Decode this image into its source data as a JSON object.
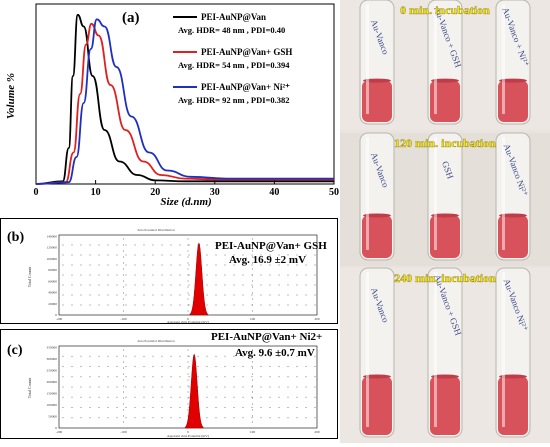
{
  "panel_a": {
    "panel_label": "(a)",
    "chart_data": {
      "type": "line",
      "xlabel": "Size (d.nm)",
      "ylabel": "Volume %",
      "xlim": [
        0,
        50
      ],
      "x_ticks": [
        0,
        10,
        20,
        30,
        40,
        50
      ],
      "legend_placement": "top-right",
      "series": [
        {
          "name": "PEI-AuNP@Van",
          "detail": "Avg. HDR= 48 nm , PDI=0.40",
          "color": "#000000",
          "x": [
            0,
            4.5,
            5.5,
            6.2,
            7.0,
            8.0,
            9.5,
            11.5,
            14,
            17,
            20,
            25,
            30,
            50
          ],
          "y": [
            0,
            0.3,
            4,
            12,
            18.8,
            17.5,
            12,
            6,
            2.5,
            1.0,
            0.4,
            0.3,
            0.3,
            0.3
          ]
        },
        {
          "name": "PEI-AuNP@Van+ GSH",
          "detail": "Avg. HDR= 54 nm , PDI=0.394",
          "color": "#e0201e",
          "x": [
            0,
            5,
            6.3,
            7.4,
            8.4,
            9.3,
            10.5,
            12.5,
            15,
            18,
            21,
            25,
            30,
            50
          ],
          "y": [
            0,
            0.2,
            3.5,
            10,
            15.5,
            17.8,
            16.5,
            11,
            6,
            2.5,
            1.0,
            0.6,
            0.5,
            0.5
          ]
        },
        {
          "name": "PEI-AuNP@Van+ Ni²⁺",
          "detail": "Avg. HDR= 92 nm , PDI=0.382",
          "color": "#1f2fbf",
          "x": [
            0,
            5.5,
            6.8,
            8.0,
            9.2,
            10.2,
            11.5,
            13.5,
            16,
            19,
            22,
            26,
            32,
            50
          ],
          "y": [
            0,
            0.2,
            3,
            9,
            15,
            18.3,
            17.5,
            13,
            7.5,
            3.5,
            1.5,
            0.8,
            0.6,
            0.6
          ]
        }
      ]
    }
  },
  "panel_b": {
    "panel_label": "(b)",
    "plot_title": "Zeta Potential Distribution",
    "caption_line1": "PEI-AuNP@Van+  GSH",
    "caption_line2": "Avg. 16.9 ±2 mV",
    "ylabel": "Total Counts",
    "xlabel": "Apparent Zeta Potential (mV)",
    "y_ticks": [
      "0",
      "20000",
      "40000",
      "60000",
      "80000",
      "100000",
      "120000",
      "140000"
    ],
    "x_ticks": [
      "-200",
      "-100",
      "0",
      "100",
      "200"
    ],
    "chart_data": {
      "type": "area",
      "peak_x": 16.9,
      "fill": "#e00000"
    }
  },
  "panel_c": {
    "panel_label": "(c)",
    "plot_title": "Zeta Potential Distribution",
    "caption_line1": "PEI-AuNP@Van+  Ni2+",
    "caption_line2": "Avg. 9.6 ±0.7 mV",
    "ylabel": "Total Counts",
    "xlabel": "Apparent Zeta Potential (mV)",
    "y_ticks": [
      "0",
      "50000",
      "100000",
      "150000",
      "200000",
      "250000",
      "300000",
      "350000"
    ],
    "x_ticks": [
      "-200",
      "-100",
      "0",
      "100",
      "200"
    ],
    "chart_data": {
      "type": "area",
      "peak_x": 9.6,
      "fill": "#e00000"
    }
  },
  "photos": {
    "rows": [
      {
        "label": "0 min. incubation",
        "tube_labels": [
          "Au-Vanco",
          "Au-Vanco + GSH",
          "Au-Vanco + Ni²⁺"
        ]
      },
      {
        "label": "120 min. incubation",
        "tube_labels": [
          "Au-Vanco",
          "GSH",
          "Au-Vanco Ni²⁺"
        ]
      },
      {
        "label": "240 min. incubation",
        "tube_labels": [
          "Au-Vanco",
          "Au-Vanco + GSH",
          "Au-Vanco Ni²⁺"
        ]
      }
    ],
    "liquid_color": "#d8525c",
    "label_color": "#f5e600"
  }
}
